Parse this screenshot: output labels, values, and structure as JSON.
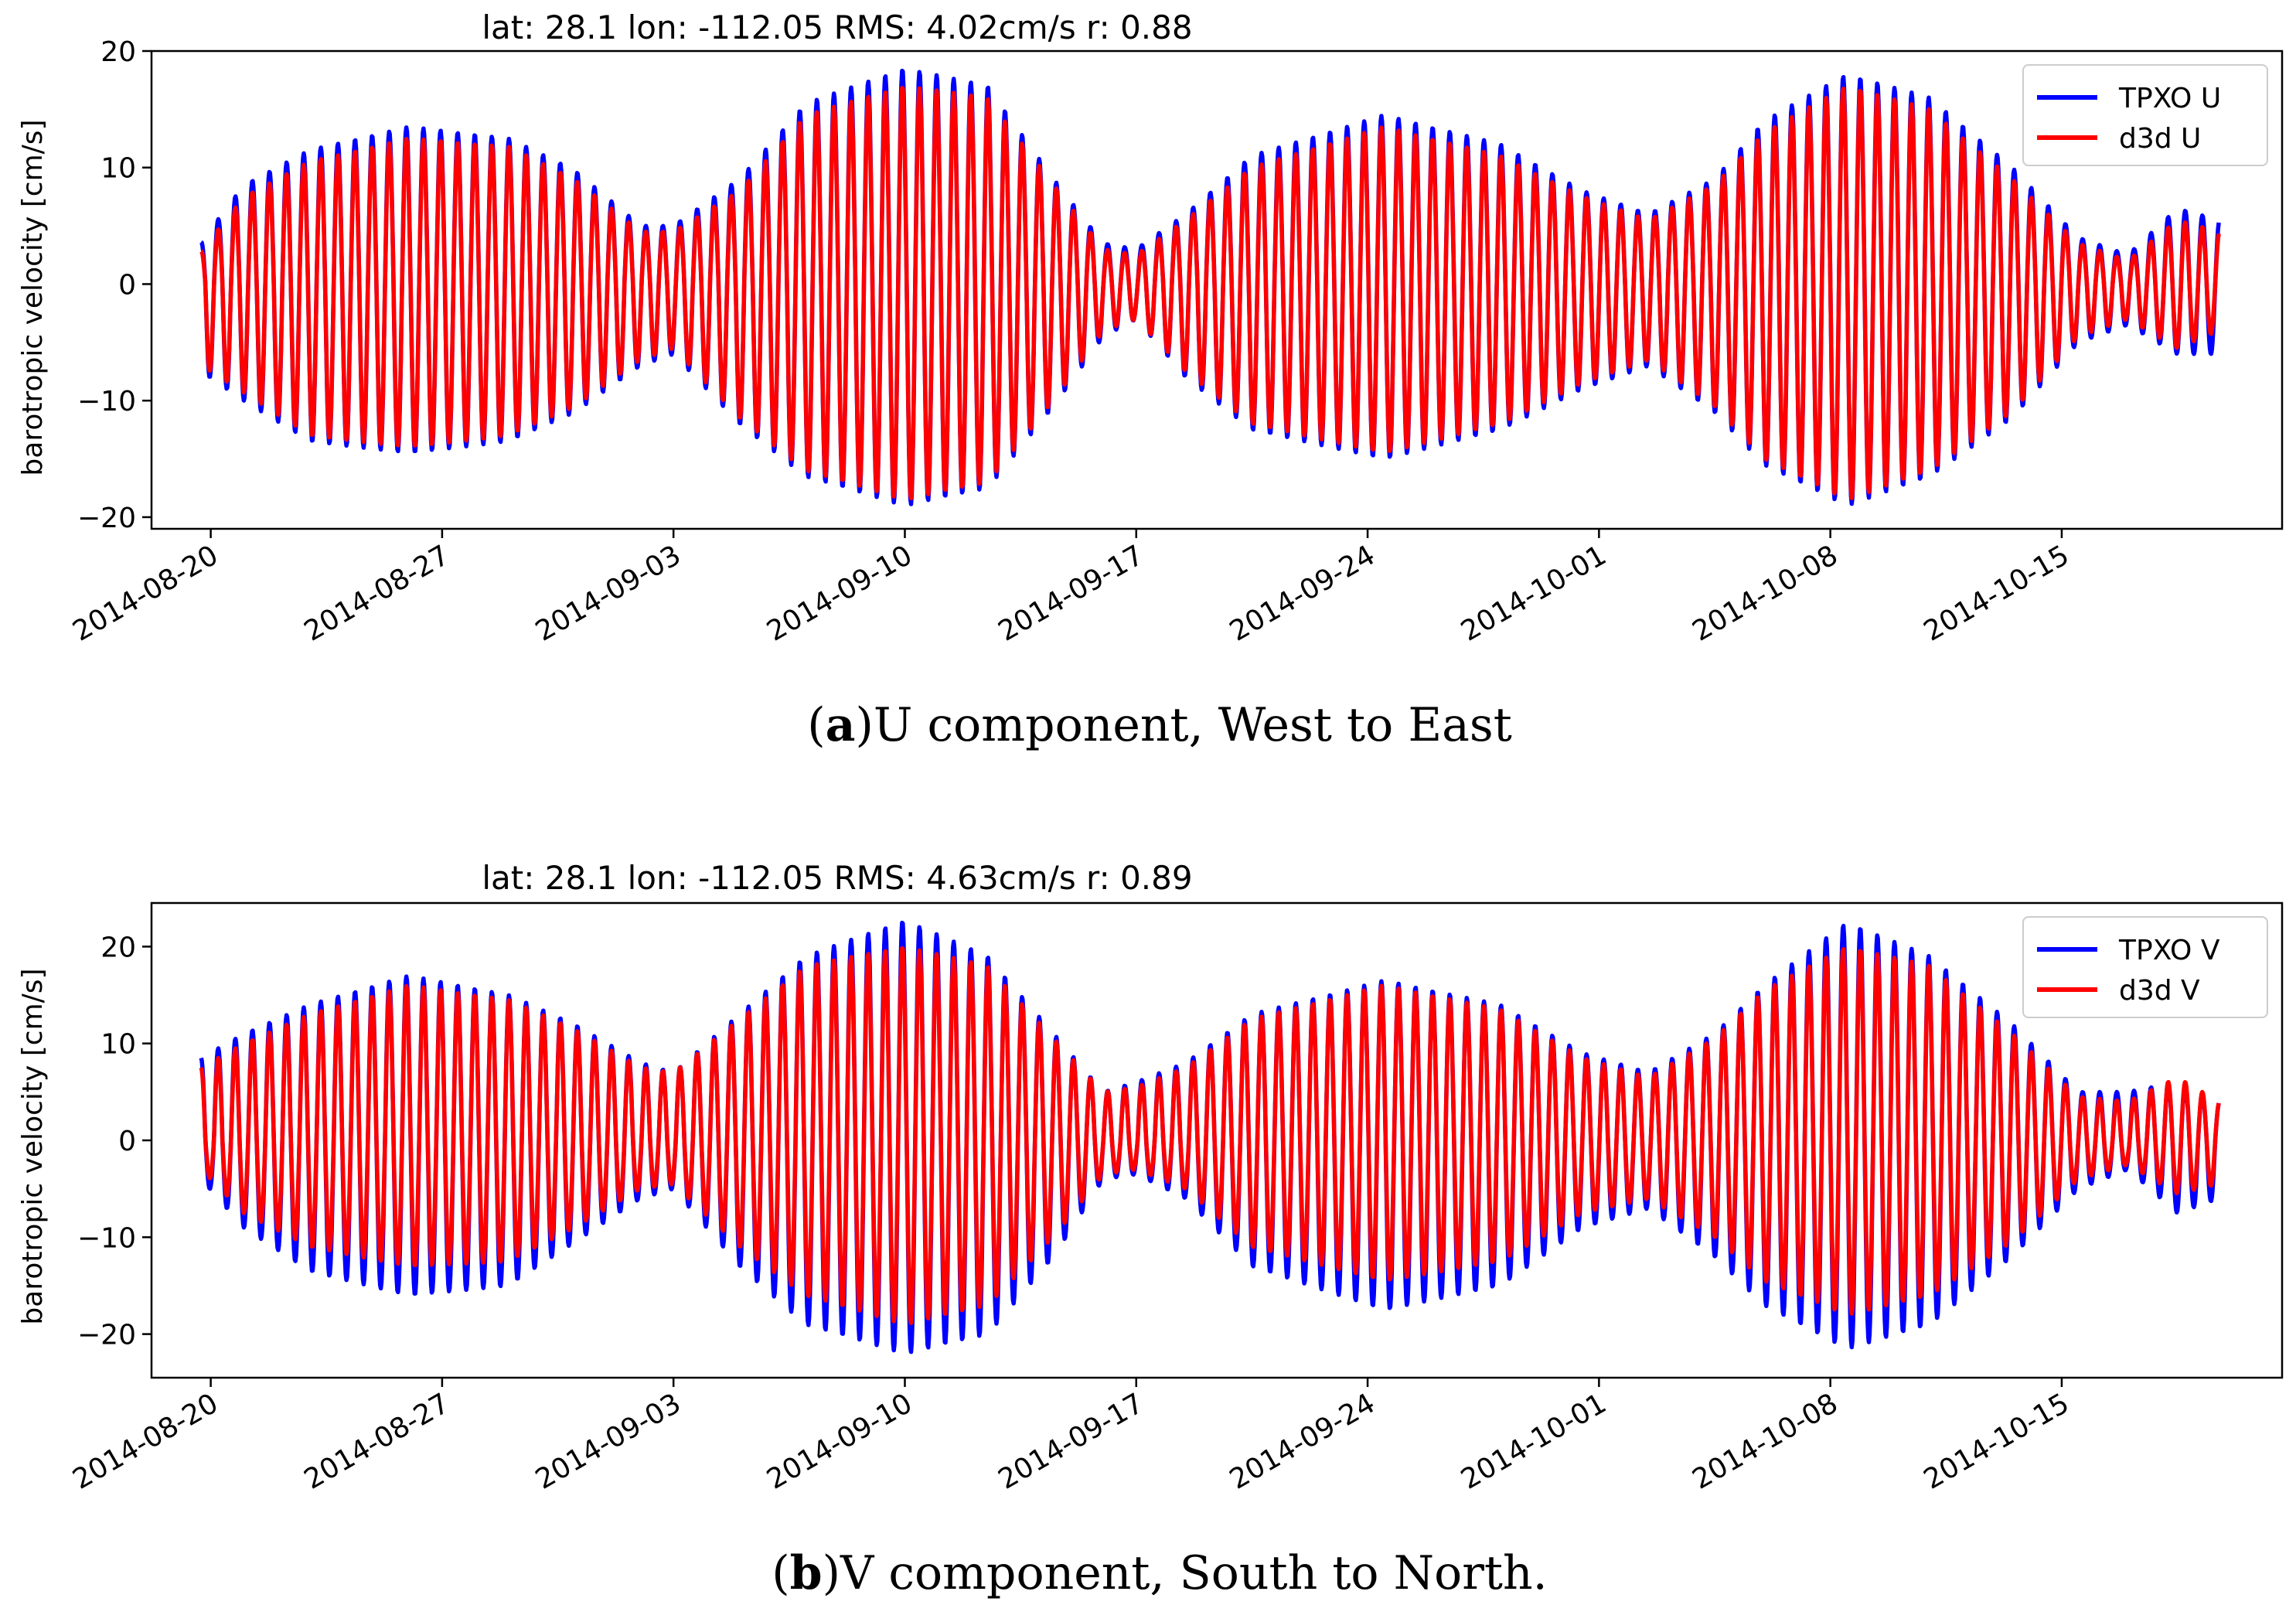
{
  "chart_data": [
    {
      "type": "line",
      "title": "lat: 28.1 lon: -112.05 RMS: 4.02cm/s r: 0.88",
      "ylabel": "barotropic velocity [cm/s]",
      "xlabel": "",
      "ylim": [
        -21,
        20
      ],
      "yticks": [
        20,
        10,
        0,
        -10,
        -20
      ],
      "xlim": [
        "2014-08-18T05:00",
        "2014-10-21T16:00"
      ],
      "xticks": [
        "2014-08-20",
        "2014-08-27",
        "2014-09-03",
        "2014-09-10",
        "2014-09-17",
        "2014-09-24",
        "2014-10-01",
        "2014-10-08",
        "2014-10-15"
      ],
      "legend_position": "top-right",
      "grid": false,
      "x_range": [
        "2014-08-19T17:00",
        "2014-10-19T18:00"
      ],
      "oscillation_period_hours": 12.42,
      "series": [
        {
          "name": "TPXO U",
          "color": "#0000ff",
          "envelope": [
            {
              "t": "2014-08-19T17:00",
              "max": 3.6,
              "min": -7.5
            },
            {
              "t": "2014-08-21T00:00",
              "max": 8.5,
              "min": -10.0
            },
            {
              "t": "2014-08-23T00:00",
              "max": 11.5,
              "min": -13.5
            },
            {
              "t": "2014-08-26T00:00",
              "max": 13.5,
              "min": -14.5
            },
            {
              "t": "2014-08-29T00:00",
              "max": 12.5,
              "min": -13.5
            },
            {
              "t": "2014-08-31T00:00",
              "max": 9.8,
              "min": -11.0
            },
            {
              "t": "2014-09-02T00:00",
              "max": 5.0,
              "min": -7.0
            },
            {
              "t": "2014-09-03T00:00",
              "max": 5.0,
              "min": -6.0
            },
            {
              "t": "2014-09-05T00:00",
              "max": 9.0,
              "min": -12.0
            },
            {
              "t": "2014-09-07T00:00",
              "max": 15.5,
              "min": -16.5
            },
            {
              "t": "2014-09-10T00:00",
              "max": 18.5,
              "min": -19.0
            },
            {
              "t": "2014-09-12T12:00",
              "max": 17.0,
              "min": -17.5
            },
            {
              "t": "2014-09-14T12:00",
              "max": 9.0,
              "min": -10.5
            },
            {
              "t": "2014-09-16T00:00",
              "max": 3.5,
              "min": -4.5
            },
            {
              "t": "2014-09-17T00:00",
              "max": 3.0,
              "min": -3.0
            },
            {
              "t": "2014-09-18T12:00",
              "max": 6.0,
              "min": -8.0
            },
            {
              "t": "2014-09-20T12:00",
              "max": 11.0,
              "min": -12.5
            },
            {
              "t": "2014-09-24T12:00",
              "max": 14.5,
              "min": -15.0
            },
            {
              "t": "2014-09-28T00:00",
              "max": 12.0,
              "min": -12.5
            },
            {
              "t": "2014-09-30T12:00",
              "max": 8.0,
              "min": -9.0
            },
            {
              "t": "2014-10-02T12:00",
              "max": 6.0,
              "min": -7.0
            },
            {
              "t": "2014-10-04T12:00",
              "max": 9.0,
              "min": -11.0
            },
            {
              "t": "2014-10-06T00:00",
              "max": 14.0,
              "min": -15.5
            },
            {
              "t": "2014-10-08T12:00",
              "max": 18.0,
              "min": -19.0
            },
            {
              "t": "2014-10-11T00:00",
              "max": 16.0,
              "min": -16.5
            },
            {
              "t": "2014-10-13T12:00",
              "max": 10.0,
              "min": -11.5
            },
            {
              "t": "2014-10-15T12:00",
              "max": 4.0,
              "min": -5.0
            },
            {
              "t": "2014-10-17T00:00",
              "max": 2.5,
              "min": -3.5
            },
            {
              "t": "2014-10-18T12:00",
              "max": 6.5,
              "min": -6.0
            },
            {
              "t": "2014-10-19T18:00",
              "max": 5.5,
              "min": -6.0
            }
          ]
        },
        {
          "name": "d3d U",
          "color": "#ff0000",
          "envelope": [
            {
              "t": "2014-08-19T17:00",
              "max": 2.8,
              "min": -7.0
            },
            {
              "t": "2014-08-21T00:00",
              "max": 7.5,
              "min": -9.3
            },
            {
              "t": "2014-08-23T00:00",
              "max": 10.5,
              "min": -13.0
            },
            {
              "t": "2014-08-26T00:00",
              "max": 12.5,
              "min": -14.0
            },
            {
              "t": "2014-08-29T00:00",
              "max": 11.8,
              "min": -13.0
            },
            {
              "t": "2014-08-31T00:00",
              "max": 9.0,
              "min": -10.5
            },
            {
              "t": "2014-09-02T00:00",
              "max": 4.5,
              "min": -6.5
            },
            {
              "t": "2014-09-03T00:00",
              "max": 4.5,
              "min": -5.5
            },
            {
              "t": "2014-09-05T00:00",
              "max": 8.0,
              "min": -11.5
            },
            {
              "t": "2014-09-07T00:00",
              "max": 14.5,
              "min": -16.0
            },
            {
              "t": "2014-09-10T00:00",
              "max": 17.0,
              "min": -18.5
            },
            {
              "t": "2014-09-12T12:00",
              "max": 16.0,
              "min": -17.0
            },
            {
              "t": "2014-09-14T12:00",
              "max": 8.5,
              "min": -10.0
            },
            {
              "t": "2014-09-16T00:00",
              "max": 3.0,
              "min": -4.0
            },
            {
              "t": "2014-09-17T00:00",
              "max": 2.5,
              "min": -3.0
            },
            {
              "t": "2014-09-18T12:00",
              "max": 5.5,
              "min": -7.5
            },
            {
              "t": "2014-09-20T12:00",
              "max": 10.0,
              "min": -12.0
            },
            {
              "t": "2014-09-24T12:00",
              "max": 13.5,
              "min": -14.5
            },
            {
              "t": "2014-09-28T00:00",
              "max": 11.0,
              "min": -12.0
            },
            {
              "t": "2014-09-30T12:00",
              "max": 7.5,
              "min": -8.5
            },
            {
              "t": "2014-10-02T12:00",
              "max": 5.5,
              "min": -6.5
            },
            {
              "t": "2014-10-04T12:00",
              "max": 8.5,
              "min": -10.5
            },
            {
              "t": "2014-10-06T00:00",
              "max": 13.0,
              "min": -15.0
            },
            {
              "t": "2014-10-08T12:00",
              "max": 17.0,
              "min": -18.5
            },
            {
              "t": "2014-10-11T00:00",
              "max": 15.0,
              "min": -16.0
            },
            {
              "t": "2014-10-13T12:00",
              "max": 9.0,
              "min": -11.0
            },
            {
              "t": "2014-10-15T12:00",
              "max": 3.5,
              "min": -4.5
            },
            {
              "t": "2014-10-17T00:00",
              "max": 2.0,
              "min": -3.0
            },
            {
              "t": "2014-10-18T12:00",
              "max": 5.5,
              "min": -5.5
            },
            {
              "t": "2014-10-19T18:00",
              "max": 4.5,
              "min": -4.0
            }
          ]
        }
      ]
    },
    {
      "type": "line",
      "title": "lat: 28.1 lon: -112.05 RMS: 4.63cm/s r: 0.89",
      "ylabel": "barotropic velocity [cm/s]",
      "xlabel": "",
      "ylim": [
        -24.5,
        24.5
      ],
      "yticks": [
        20,
        10,
        0,
        -10,
        -20
      ],
      "xlim": [
        "2014-08-18T05:00",
        "2014-10-21T16:00"
      ],
      "xticks": [
        "2014-08-20",
        "2014-08-27",
        "2014-09-03",
        "2014-09-10",
        "2014-09-17",
        "2014-09-24",
        "2014-10-01",
        "2014-10-08",
        "2014-10-15"
      ],
      "legend_position": "top-right",
      "grid": false,
      "x_range": [
        "2014-08-19T17:00",
        "2014-10-19T18:00"
      ],
      "oscillation_period_hours": 12.42,
      "series": [
        {
          "name": "TPXO V",
          "color": "#0000ff",
          "envelope": [
            {
              "t": "2014-08-19T17:00",
              "max": 8.5,
              "min": -4.0
            },
            {
              "t": "2014-08-21T00:00",
              "max": 11.0,
              "min": -9.0
            },
            {
              "t": "2014-08-23T00:00",
              "max": 14.0,
              "min": -13.5
            },
            {
              "t": "2014-08-26T00:00",
              "max": 17.0,
              "min": -16.0
            },
            {
              "t": "2014-08-29T00:00",
              "max": 15.0,
              "min": -15.0
            },
            {
              "t": "2014-08-31T00:00",
              "max": 12.0,
              "min": -10.5
            },
            {
              "t": "2014-09-02T00:00",
              "max": 8.0,
              "min": -6.0
            },
            {
              "t": "2014-09-03T00:00",
              "max": 7.0,
              "min": -5.0
            },
            {
              "t": "2014-09-05T00:00",
              "max": 13.0,
              "min": -13.0
            },
            {
              "t": "2014-09-07T00:00",
              "max": 19.0,
              "min": -19.0
            },
            {
              "t": "2014-09-10T00:00",
              "max": 22.7,
              "min": -22.0
            },
            {
              "t": "2014-09-12T12:00",
              "max": 19.0,
              "min": -20.0
            },
            {
              "t": "2014-09-14T12:00",
              "max": 11.0,
              "min": -12.0
            },
            {
              "t": "2014-09-16T00:00",
              "max": 5.0,
              "min": -4.0
            },
            {
              "t": "2014-09-17T00:00",
              "max": 6.0,
              "min": -3.5
            },
            {
              "t": "2014-09-18T12:00",
              "max": 8.0,
              "min": -6.0
            },
            {
              "t": "2014-09-20T12:00",
              "max": 13.0,
              "min": -13.0
            },
            {
              "t": "2014-09-24T12:00",
              "max": 16.5,
              "min": -17.5
            },
            {
              "t": "2014-09-28T00:00",
              "max": 14.0,
              "min": -15.0
            },
            {
              "t": "2014-09-30T12:00",
              "max": 9.0,
              "min": -9.0
            },
            {
              "t": "2014-10-02T12:00",
              "max": 7.0,
              "min": -7.0
            },
            {
              "t": "2014-10-04T12:00",
              "max": 11.0,
              "min": -12.0
            },
            {
              "t": "2014-10-06T00:00",
              "max": 16.0,
              "min": -17.0
            },
            {
              "t": "2014-10-08T12:00",
              "max": 22.5,
              "min": -21.5
            },
            {
              "t": "2014-10-11T00:00",
              "max": 19.0,
              "min": -19.0
            },
            {
              "t": "2014-10-13T12:00",
              "max": 12.0,
              "min": -12.0
            },
            {
              "t": "2014-10-15T12:00",
              "max": 5.0,
              "min": -5.0
            },
            {
              "t": "2014-10-17T00:00",
              "max": 5.0,
              "min": -3.0
            },
            {
              "t": "2014-10-18T12:00",
              "max": 6.0,
              "min": -7.5
            },
            {
              "t": "2014-10-19T18:00",
              "max": 4.0,
              "min": -6.0
            }
          ]
        },
        {
          "name": "d3d V",
          "color": "#ff0000",
          "envelope": [
            {
              "t": "2014-08-19T17:00",
              "max": 7.5,
              "min": -3.0
            },
            {
              "t": "2014-08-21T00:00",
              "max": 10.0,
              "min": -7.5
            },
            {
              "t": "2014-08-23T00:00",
              "max": 13.0,
              "min": -11.0
            },
            {
              "t": "2014-08-26T00:00",
              "max": 16.0,
              "min": -13.0
            },
            {
              "t": "2014-08-29T00:00",
              "max": 14.5,
              "min": -12.5
            },
            {
              "t": "2014-08-31T00:00",
              "max": 11.5,
              "min": -9.0
            },
            {
              "t": "2014-09-02T00:00",
              "max": 7.5,
              "min": -5.0
            },
            {
              "t": "2014-09-03T00:00",
              "max": 7.0,
              "min": -4.5
            },
            {
              "t": "2014-09-05T00:00",
              "max": 12.5,
              "min": -11.0
            },
            {
              "t": "2014-09-07T00:00",
              "max": 18.0,
              "min": -16.0
            },
            {
              "t": "2014-09-10T00:00",
              "max": 20.0,
              "min": -19.0
            },
            {
              "t": "2014-09-12T12:00",
              "max": 18.0,
              "min": -17.0
            },
            {
              "t": "2014-09-14T12:00",
              "max": 10.5,
              "min": -10.0
            },
            {
              "t": "2014-09-16T00:00",
              "max": 5.0,
              "min": -3.5
            },
            {
              "t": "2014-09-17T00:00",
              "max": 5.5,
              "min": -3.0
            },
            {
              "t": "2014-09-18T12:00",
              "max": 7.5,
              "min": -5.0
            },
            {
              "t": "2014-09-20T12:00",
              "max": 12.5,
              "min": -11.0
            },
            {
              "t": "2014-09-24T12:00",
              "max": 16.0,
              "min": -14.5
            },
            {
              "t": "2014-09-28T00:00",
              "max": 13.5,
              "min": -12.5
            },
            {
              "t": "2014-09-30T12:00",
              "max": 8.5,
              "min": -7.5
            },
            {
              "t": "2014-10-02T12:00",
              "max": 6.5,
              "min": -6.0
            },
            {
              "t": "2014-10-04T12:00",
              "max": 10.5,
              "min": -10.0
            },
            {
              "t": "2014-10-06T00:00",
              "max": 15.5,
              "min": -14.5
            },
            {
              "t": "2014-10-08T12:00",
              "max": 20.0,
              "min": -18.0
            },
            {
              "t": "2014-10-11T00:00",
              "max": 18.0,
              "min": -16.0
            },
            {
              "t": "2014-10-13T12:00",
              "max": 11.0,
              "min": -10.5
            },
            {
              "t": "2014-10-15T12:00",
              "max": 4.5,
              "min": -4.0
            },
            {
              "t": "2014-10-17T00:00",
              "max": 4.0,
              "min": -2.5
            },
            {
              "t": "2014-10-18T12:00",
              "max": 6.5,
              "min": -5.5
            },
            {
              "t": "2014-10-19T18:00",
              "max": 4.0,
              "min": -4.5
            }
          ]
        }
      ]
    }
  ],
  "captions": [
    {
      "label": "a",
      "text": "U component, West to East"
    },
    {
      "label": "b",
      "text": "V component, South to North."
    }
  ]
}
